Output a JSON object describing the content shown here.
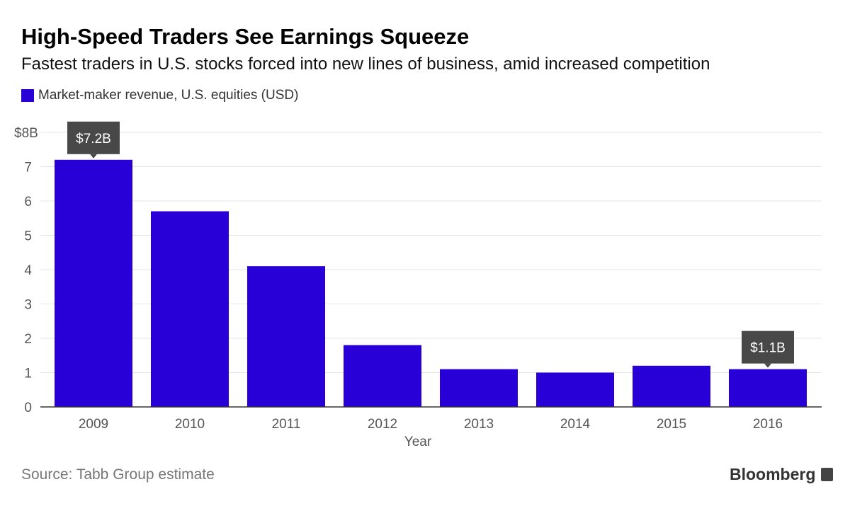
{
  "title": "High-Speed Traders See Earnings Squeeze",
  "subtitle": "Fastest traders in U.S. stocks forced into new lines of business, amid increased competition",
  "source": "Source: Tabb Group estimate",
  "brand": "Bloomberg",
  "chart_data": {
    "type": "bar",
    "categories": [
      "2009",
      "2010",
      "2011",
      "2012",
      "2013",
      "2014",
      "2015",
      "2016"
    ],
    "series": [
      {
        "name": "Market-maker revenue, U.S. equities (USD)",
        "values": [
          7.2,
          5.7,
          4.1,
          1.8,
          1.1,
          1.0,
          1.2,
          1.1
        ],
        "color": "#2800d7"
      }
    ],
    "xlabel": "Year",
    "ylabel": "",
    "ylim": [
      0,
      8
    ],
    "yticks": [
      "0",
      "1",
      "2",
      "3",
      "4",
      "5",
      "6",
      "7",
      "$8B"
    ],
    "grid": true,
    "legend": "top-left",
    "annotations": [
      {
        "category": "2009",
        "text": "$7.2B"
      },
      {
        "category": "2016",
        "text": "$1.1B"
      }
    ]
  }
}
